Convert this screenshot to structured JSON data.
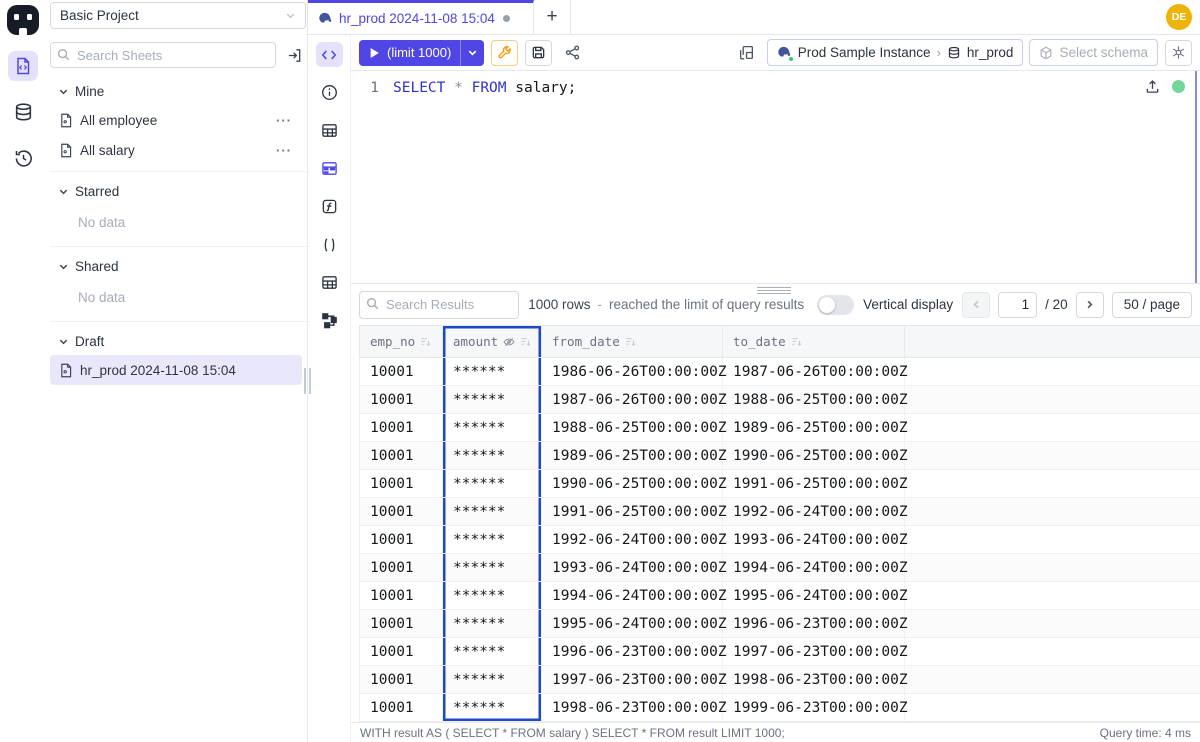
{
  "colors": {
    "accent": "#4f46e5",
    "accent_light_bg": "#e4e2fb",
    "selected_column_border": "#1c49c9",
    "run_button": "#4f46e5",
    "avatar_bg": "#edb309",
    "wrench": "#f59e0b",
    "green_dot": "#74d69a"
  },
  "topbar": {
    "project_select": "Basic Project",
    "tab_title": "hr_prod 2024-11-08 15:04",
    "new_tab": "+",
    "avatar": "DE"
  },
  "sidebar": {
    "search_placeholder": "Search Sheets",
    "mine": {
      "label": "Mine",
      "items": [
        "All employee",
        "All salary"
      ],
      "more": "···"
    },
    "starred": {
      "label": "Starred",
      "empty": "No data"
    },
    "shared": {
      "label": "Shared",
      "empty": "No data"
    },
    "draft": {
      "label": "Draft",
      "active_item": "hr_prod 2024-11-08 15:04"
    }
  },
  "toolbar": {
    "run_label": "(limit 1000)",
    "connection": {
      "instance": "Prod Sample Instance",
      "separator": "›",
      "database": "hr_prod",
      "schema_placeholder": "Select schema"
    }
  },
  "editor": {
    "line_number": "1",
    "kw_select": "SELECT",
    "star": "*",
    "kw_from": "FROM",
    "rest": "salary;"
  },
  "results": {
    "search_placeholder": "Search Results",
    "rows_count": "1000 rows",
    "dash": "-",
    "limit_message": "reached the limit of query results",
    "vertical_display_label": "Vertical display",
    "prev": "‹",
    "next": "›",
    "page_current": "1",
    "page_total": "/ 20",
    "page_size": "50 / page"
  },
  "table": {
    "columns": [
      {
        "key": "emp_no",
        "label": "emp_no",
        "masked": false,
        "selected": false
      },
      {
        "key": "amount",
        "label": "amount",
        "masked": true,
        "selected": true
      },
      {
        "key": "from_date",
        "label": "from_date",
        "masked": false,
        "selected": false
      },
      {
        "key": "to_date",
        "label": "to_date",
        "masked": false,
        "selected": false
      }
    ],
    "rows": [
      [
        "10001",
        "******",
        "1986-06-26T00:00:00Z",
        "1987-06-26T00:00:00Z"
      ],
      [
        "10001",
        "******",
        "1987-06-26T00:00:00Z",
        "1988-06-25T00:00:00Z"
      ],
      [
        "10001",
        "******",
        "1988-06-25T00:00:00Z",
        "1989-06-25T00:00:00Z"
      ],
      [
        "10001",
        "******",
        "1989-06-25T00:00:00Z",
        "1990-06-25T00:00:00Z"
      ],
      [
        "10001",
        "******",
        "1990-06-25T00:00:00Z",
        "1991-06-25T00:00:00Z"
      ],
      [
        "10001",
        "******",
        "1991-06-25T00:00:00Z",
        "1992-06-24T00:00:00Z"
      ],
      [
        "10001",
        "******",
        "1992-06-24T00:00:00Z",
        "1993-06-24T00:00:00Z"
      ],
      [
        "10001",
        "******",
        "1993-06-24T00:00:00Z",
        "1994-06-24T00:00:00Z"
      ],
      [
        "10001",
        "******",
        "1994-06-24T00:00:00Z",
        "1995-06-24T00:00:00Z"
      ],
      [
        "10001",
        "******",
        "1995-06-24T00:00:00Z",
        "1996-06-23T00:00:00Z"
      ],
      [
        "10001",
        "******",
        "1996-06-23T00:00:00Z",
        "1997-06-23T00:00:00Z"
      ],
      [
        "10001",
        "******",
        "1997-06-23T00:00:00Z",
        "1998-06-23T00:00:00Z"
      ],
      [
        "10001",
        "******",
        "1998-06-23T00:00:00Z",
        "1999-06-23T00:00:00Z"
      ]
    ]
  },
  "statusbar": {
    "executed_query": "WITH result AS ( SELECT * FROM salary ) SELECT * FROM result LIMIT 1000;",
    "query_time": "Query time: 4 ms"
  }
}
